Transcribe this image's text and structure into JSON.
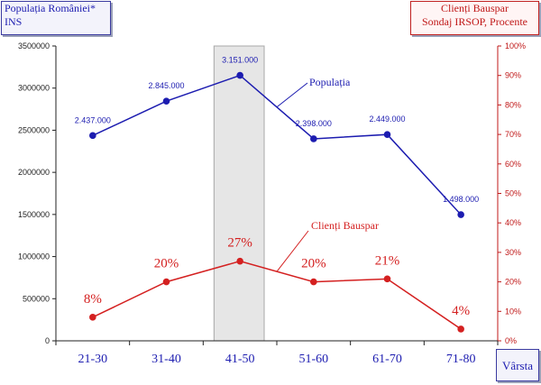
{
  "left_axis_box": {
    "line1": "Populația României*",
    "line2": "INS"
  },
  "right_axis_box": {
    "line1": "Clienți Bauspar",
    "line2": "Sondaj IRSOP, Procente"
  },
  "x_axis_box": {
    "label": "Vârsta"
  },
  "colors": {
    "population": "#1c1cb0",
    "clients": "#d42020",
    "highlight": "#e6e6e6"
  },
  "chart_data": {
    "type": "line",
    "categories": [
      "21-30",
      "31-40",
      "41-50",
      "51-60",
      "61-70",
      "71-80"
    ],
    "highlighted_category": "41-50",
    "series": [
      {
        "name": "Populația",
        "axis": "left",
        "values": [
          2437000,
          2845000,
          3151000,
          2398000,
          2449000,
          1498000
        ],
        "labels": [
          "2.437.000",
          "2.845.000",
          "3.151.000",
          "2.398.000",
          "2.449.000",
          "1.498.000"
        ]
      },
      {
        "name": "Clienți Bauspar",
        "axis": "right",
        "values": [
          8,
          20,
          27,
          20,
          21,
          4
        ],
        "labels": [
          "8%",
          "20%",
          "27%",
          "20%",
          "21%",
          "4%"
        ]
      }
    ],
    "y_left": {
      "ylim": [
        0,
        3500000
      ],
      "ticks": [
        "0",
        "500000",
        "1000000",
        "1500000",
        "2000000",
        "2500000",
        "3000000",
        "3500000"
      ]
    },
    "y_right": {
      "ylim": [
        0,
        100
      ],
      "ticks": [
        "0%",
        "10%",
        "20%",
        "30%",
        "40%",
        "50%",
        "60%",
        "70%",
        "80%",
        "90%",
        "100%"
      ]
    },
    "xlabel": "Vârsta",
    "grid": false
  }
}
